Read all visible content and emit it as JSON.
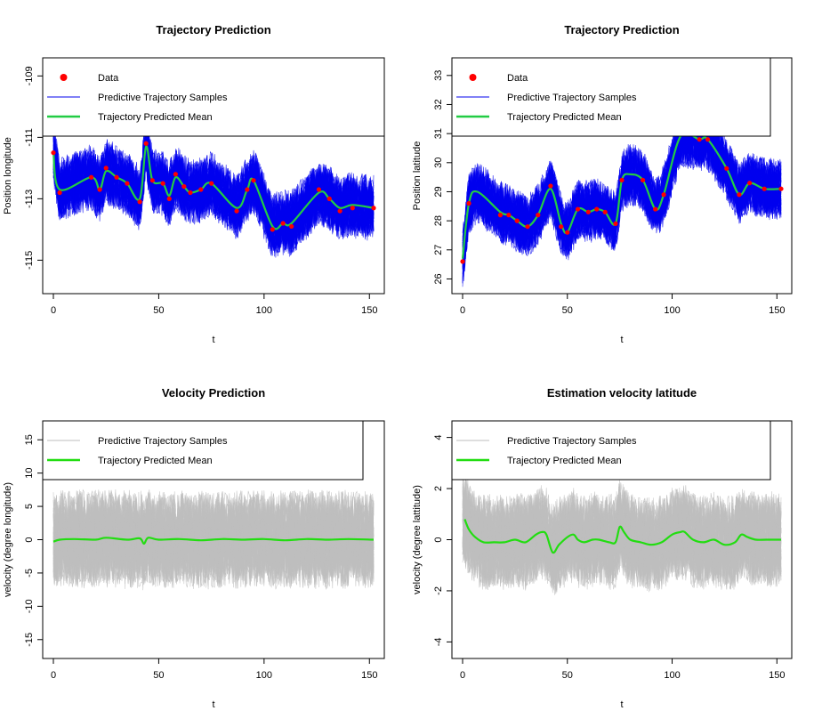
{
  "chart_data": [
    {
      "type": "line",
      "title": "Trajectory Prediction",
      "xlabel": "t",
      "ylabel": "Position longitude",
      "xlim": [
        0,
        152
      ],
      "ylim": [
        -115.8,
        -108.7
      ],
      "xticks": [
        0,
        50,
        100,
        150
      ],
      "yticks": [
        -115,
        -113,
        -111,
        -109
      ],
      "legend": {
        "placement": "top-left",
        "items": [
          "Data",
          "Predictive Trajectory Samples",
          "Trajectory Predicted Mean"
        ]
      },
      "colors": {
        "data": "#ff0000",
        "samples": "#0000ee",
        "mean": "#22cc44"
      },
      "band_halfwidth": 1.1,
      "data_points": {
        "x": [
          0,
          3,
          18,
          22,
          25,
          30,
          35,
          41,
          44,
          47,
          52,
          55,
          58,
          62,
          65,
          70,
          75,
          87,
          92,
          95,
          104,
          109,
          113,
          126,
          131,
          136,
          142,
          152
        ],
        "y": [
          -111.5,
          -112.8,
          -112.3,
          -112.7,
          -112.0,
          -112.3,
          -112.5,
          -113.1,
          -111.2,
          -112.4,
          -112.5,
          -113.0,
          -112.2,
          -112.6,
          -112.8,
          -112.7,
          -112.5,
          -113.4,
          -112.7,
          -112.4,
          -114.0,
          -113.8,
          -113.9,
          -112.7,
          -113.0,
          -113.4,
          -113.3,
          -113.3
        ]
      },
      "mean_series": {
        "x": [
          0,
          3,
          18,
          22,
          25,
          30,
          35,
          41,
          44,
          47,
          52,
          55,
          58,
          62,
          65,
          70,
          75,
          87,
          92,
          95,
          104,
          109,
          113,
          126,
          131,
          136,
          142,
          152
        ],
        "y": [
          -111.5,
          -112.7,
          -112.3,
          -112.7,
          -112.1,
          -112.3,
          -112.5,
          -113.0,
          -111.3,
          -112.4,
          -112.5,
          -112.9,
          -112.3,
          -112.6,
          -112.8,
          -112.7,
          -112.5,
          -113.3,
          -112.7,
          -112.4,
          -113.9,
          -113.8,
          -113.8,
          -112.8,
          -113.0,
          -113.3,
          -113.2,
          -113.3
        ]
      }
    },
    {
      "type": "line",
      "title": "Trajectory Prediction",
      "xlabel": "t",
      "ylabel": "Position latitude",
      "xlim": [
        0,
        152
      ],
      "ylim": [
        25.8,
        33.3
      ],
      "xticks": [
        0,
        50,
        100,
        150
      ],
      "yticks": [
        26,
        27,
        28,
        29,
        30,
        31,
        32,
        33
      ],
      "legend": {
        "placement": "top-left",
        "items": [
          "Data",
          "Predictive Trajectory Samples",
          "Trajectory Predicted Mean"
        ]
      },
      "colors": {
        "data": "#ff0000",
        "samples": "#0000ee",
        "mean": "#22cc44"
      },
      "band_halfwidth": 1.1,
      "data_points": {
        "x": [
          0,
          3,
          18,
          22,
          26,
          31,
          36,
          42,
          47,
          50,
          55,
          60,
          64,
          68,
          73,
          76,
          86,
          92,
          96,
          104,
          113,
          117,
          126,
          132,
          137,
          144,
          152
        ],
        "y": [
          26.6,
          28.6,
          28.2,
          28.2,
          28.0,
          27.8,
          28.2,
          29.2,
          27.8,
          27.6,
          28.4,
          28.3,
          28.4,
          28.3,
          27.9,
          29.4,
          29.4,
          28.4,
          28.9,
          31.0,
          30.8,
          30.8,
          29.8,
          28.9,
          29.3,
          29.1,
          29.1
        ]
      },
      "mean_series": {
        "x": [
          0,
          3,
          7,
          18,
          22,
          26,
          31,
          36,
          42,
          47,
          50,
          55,
          60,
          64,
          68,
          73,
          76,
          80,
          86,
          92,
          96,
          104,
          113,
          117,
          126,
          132,
          137,
          144,
          152
        ],
        "y": [
          26.7,
          28.6,
          29.0,
          28.3,
          28.2,
          28.0,
          27.8,
          28.2,
          29.1,
          27.9,
          27.6,
          28.4,
          28.3,
          28.4,
          28.3,
          27.9,
          29.4,
          29.6,
          29.4,
          28.4,
          28.9,
          30.9,
          30.8,
          30.8,
          29.8,
          28.9,
          29.3,
          29.1,
          29.1
        ]
      }
    },
    {
      "type": "line",
      "title": "Velocity Prediction",
      "xlabel": "t",
      "ylabel": "velocity (degree longitude)",
      "xlim": [
        0,
        152
      ],
      "ylim": [
        -16.5,
        16.5
      ],
      "xticks": [
        0,
        50,
        100,
        150
      ],
      "yticks": [
        -15,
        -10,
        -5,
        0,
        5,
        10,
        15
      ],
      "legend": {
        "placement": "top-left",
        "items": [
          "Predictive Trajectory Samples",
          "Trajectory Predicted Mean"
        ]
      },
      "colors": {
        "samples": "#bebebe",
        "mean": "#22dd11"
      },
      "band_halfwidth": 7.5,
      "mean_series": {
        "x": [
          0,
          3,
          10,
          20,
          25,
          35,
          41,
          43,
          45,
          50,
          60,
          70,
          80,
          90,
          100,
          110,
          120,
          130,
          140,
          152
        ],
        "y": [
          -0.3,
          0.0,
          0.1,
          0.0,
          0.3,
          0.0,
          0.2,
          -0.6,
          0.3,
          0.0,
          0.1,
          -0.1,
          0.1,
          0.0,
          0.1,
          -0.1,
          0.1,
          0.0,
          0.1,
          0.0
        ]
      }
    },
    {
      "type": "line",
      "title": "Estimation velocity latitude",
      "xlabel": "t",
      "ylabel": "velocity (degree lattitude)",
      "xlim": [
        0,
        152
      ],
      "ylim": [
        -4.3,
        4.3
      ],
      "xticks": [
        0,
        50,
        100,
        150
      ],
      "yticks": [
        -4,
        -2,
        0,
        2,
        4
      ],
      "legend": {
        "placement": "top-left",
        "items": [
          "Predictive Trajectory Samples",
          "Trajectory Predicted Mean"
        ]
      },
      "colors": {
        "samples": "#bebebe",
        "mean": "#22dd11"
      },
      "band_halfwidth": 1.9,
      "mean_series": {
        "x": [
          1,
          3,
          6,
          10,
          15,
          20,
          25,
          30,
          35,
          38,
          40,
          43,
          46,
          50,
          53,
          55,
          58,
          62,
          65,
          70,
          73,
          75,
          77,
          80,
          85,
          90,
          95,
          100,
          104,
          106,
          110,
          115,
          120,
          125,
          130,
          133,
          136,
          140,
          145,
          152
        ],
        "y": [
          0.8,
          0.4,
          0.1,
          -0.1,
          -0.1,
          -0.1,
          0.0,
          -0.1,
          0.2,
          0.3,
          0.2,
          -0.5,
          -0.2,
          0.1,
          0.2,
          0.0,
          -0.1,
          0.0,
          0.0,
          -0.1,
          -0.1,
          0.5,
          0.3,
          0.0,
          -0.1,
          -0.2,
          -0.1,
          0.2,
          0.3,
          0.3,
          0.0,
          -0.1,
          0.0,
          -0.2,
          -0.1,
          0.2,
          0.1,
          0.0,
          0.0,
          0.0
        ]
      }
    }
  ]
}
